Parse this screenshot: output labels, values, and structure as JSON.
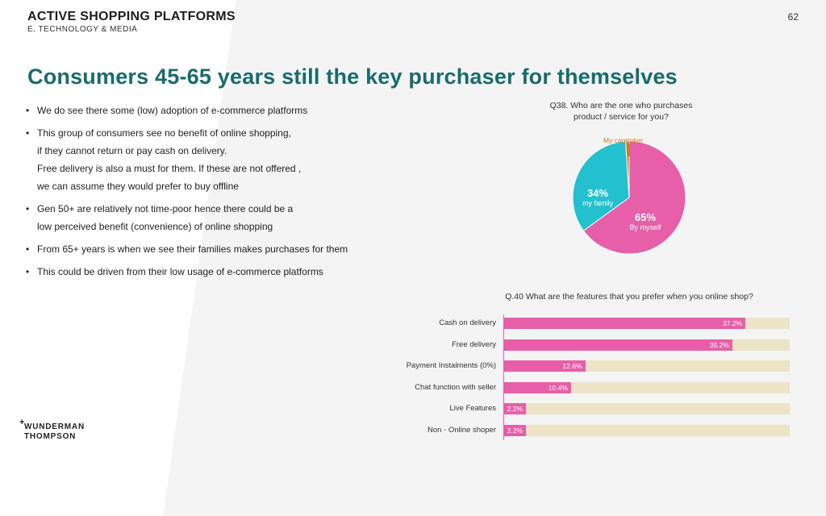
{
  "header": {
    "title": "ACTIVE SHOPPING PLATFORMS",
    "subtitle": "E. TECHNOLOGY & MEDIA",
    "page_number": "62"
  },
  "main_title": "Consumers 45-65 years still the key purchaser for themselves",
  "bullets": [
    {
      "lines": [
        "We do see there some (low) adoption of e-commerce platforms"
      ]
    },
    {
      "lines": [
        "This group of consumers see no benefit of online shopping,",
        "if they cannot return or pay cash on delivery.",
        "Free delivery is also a must for them. If these are not offered ,",
        "we can assume they would prefer to buy offline"
      ]
    },
    {
      "lines": [
        "Gen 50+ are relatively not time-poor hence there could be a",
        "low perceived benefit (convenience) of online shopping"
      ]
    },
    {
      "lines": [
        "From 65+ years is when we see their families makes purchases for them"
      ]
    },
    {
      "lines": [
        "This could be driven from their low usage of e-commerce platforms"
      ]
    }
  ],
  "logo": {
    "line1": "WUNDERMAN",
    "line2": "THOMPSON",
    "mark": "+"
  },
  "colors": {
    "pink": "#e65fa8",
    "teal": "#23c1cf",
    "orange": "#d17a1e",
    "track": "#ede3c7",
    "title": "#1a6b6c"
  },
  "chart_data": [
    {
      "type": "pie",
      "question_lines": [
        "Q38. Who are the one who purchases",
        "product / service for you?"
      ],
      "slices": [
        {
          "pct_text": "65%",
          "label": "By myself",
          "value": 65,
          "color": "#e65fa8"
        },
        {
          "pct_text": "34%",
          "label": "my family",
          "value": 34,
          "color": "#23c1cf"
        },
        {
          "pct_text": "",
          "label": "My caretaker",
          "value": 1,
          "color": "#d17a1e"
        }
      ]
    },
    {
      "type": "bar",
      "question": "Q.40 What are the features that you prefer when you online shop?",
      "categories": [
        "Cash on delivery",
        "Free delivery",
        "Payment Instalments (0%)",
        "Chat function with seller",
        "Live Features",
        "Non - Online shoper"
      ],
      "values": [
        37.2,
        35.2,
        12.6,
        10.4,
        2.2,
        2.2
      ],
      "value_labels": [
        "37.2%",
        "35.2%",
        "12.6%",
        "10.4%",
        "2.2%",
        "2.2%"
      ],
      "xlim": [
        0,
        44
      ]
    }
  ]
}
